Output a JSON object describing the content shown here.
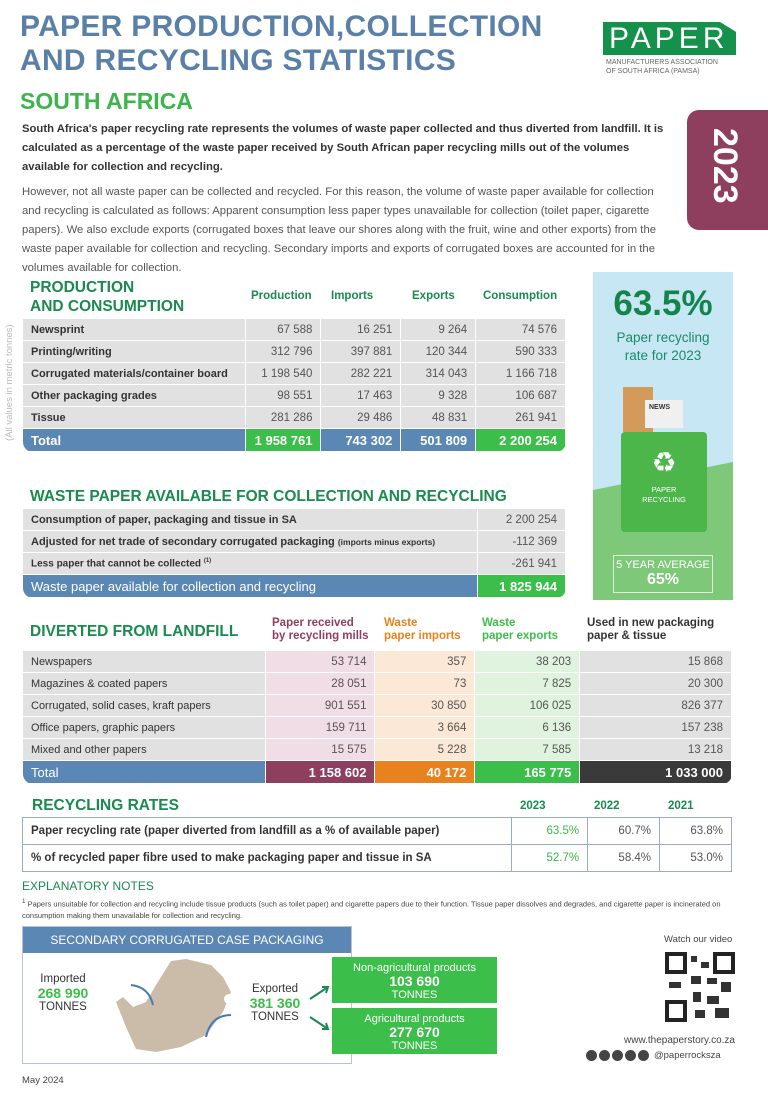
{
  "header": {
    "title_line1": "PAPER PRODUCTION,COLLECTION",
    "title_line2": "AND RECYCLING STATISTICS",
    "subtitle": "SOUTH AFRICA",
    "year": "2023"
  },
  "logo": {
    "word": "PAPER",
    "sub1": "MANUFACTURERS ASSOCIATION",
    "sub2": "OF SOUTH AFRICA (PAMSA)"
  },
  "intro": {
    "p1": "South Africa's paper recycling rate represents the volumes of waste paper collected and thus diverted from landfill. It is calculated as a percentage of the waste paper received by South African paper recycling mills out of the volumes available for collection and recycling.",
    "p2": "However, not all waste paper can be collected and recycled. For this reason, the volume of waste paper available for collection and recycling is calculated as follows: Apparent consumption less paper types unavailable for collection (toilet paper, cigarette papers). We also exclude exports (corrugated boxes that leave our shores along with the fruit, wine and other exports) from the waste paper available for collection and recycling. Secondary imports and exports of corrugated boxes are accounted for in the volumes available for collection."
  },
  "production": {
    "title1": "PRODUCTION",
    "title2": "AND CONSUMPTION",
    "units_note": "(All values in metric tonnes)",
    "columns": [
      "Production",
      "Imports",
      "Exports",
      "Consumption"
    ],
    "rows": [
      [
        "Newsprint",
        "67 588",
        "16 251",
        "9 264",
        "74 576"
      ],
      [
        "Printing/writing",
        "312 796",
        "397 881",
        "120 344",
        "590 333"
      ],
      [
        "Corrugated materials/container board",
        "1 198 540",
        "282 221",
        "314 043",
        "1 166 718"
      ],
      [
        "Other packaging grades",
        "98 551",
        "17 463",
        "9 328",
        "106 687"
      ],
      [
        "Tissue",
        "281 286",
        "29 486",
        "48 831",
        "261 941"
      ]
    ],
    "total": [
      "Total",
      "1 958 761",
      "743 302",
      "501 809",
      "2 200 254"
    ]
  },
  "waste": {
    "title": "WASTE PAPER AVAILABLE FOR COLLECTION AND RECYCLING",
    "rows": [
      {
        "label": "Consumption of paper, packaging and tissue in SA",
        "note": "",
        "value": "2 200 254"
      },
      {
        "label": "Adjusted for net trade of secondary corrugated packaging",
        "note": "(imports minus exports)",
        "value": "-112 369"
      },
      {
        "label": "Less paper that cannot be collected",
        "note": "(1)",
        "value": "-261 941"
      }
    ],
    "total": {
      "label": "Waste paper available for collection and recycling",
      "value": "1 825 944"
    }
  },
  "diverted": {
    "title": "DIVERTED FROM LANDFILL",
    "columns": [
      {
        "l1": "Paper received",
        "l2": "by recycling mills",
        "color": "#8f3f5e"
      },
      {
        "l1": "Waste",
        "l2": "paper imports",
        "color": "#e8821e"
      },
      {
        "l1": "Waste",
        "l2": "paper exports",
        "color": "#3cbe4a"
      },
      {
        "l1": "Used in new packaging",
        "l2": "paper & tissue",
        "color": "#333333"
      }
    ],
    "rows": [
      [
        "Newspapers",
        "53 714",
        "357",
        "38 203",
        "15 868"
      ],
      [
        "Magazines & coated papers",
        "28 051",
        "73",
        "7 825",
        "20 300"
      ],
      [
        "Corrugated, solid cases, kraft papers",
        "901 551",
        "30 850",
        "106 025",
        "826 377"
      ],
      [
        "Office papers, graphic papers",
        "159 711",
        "3 664",
        "6 136",
        "157 238"
      ],
      [
        "Mixed and other papers",
        "15 575",
        "5 228",
        "7 585",
        "13 218"
      ]
    ],
    "total": [
      "Total",
      "1  158 602",
      "40 172",
      "165 775",
      "1 033 000"
    ]
  },
  "rates": {
    "title": "RECYCLING RATES",
    "years": [
      "2023",
      "2022",
      "2021"
    ],
    "rows": [
      [
        "Paper recycling rate (paper diverted from landfill as a % of available paper)",
        "63.5%",
        "60.7%",
        "63.8%"
      ],
      [
        "% of recycled paper fibre used to make packaging paper and tissue in SA",
        "52.7%",
        "58.4%",
        "53.0%"
      ]
    ]
  },
  "notes": {
    "title": "EXPLANATORY NOTES",
    "sup": "1",
    "text": "Papers unsuitable for collection and recycling include tissue products (such as toilet paper) and cigarette papers due to their function. Tissue paper dissolves and degrades, and cigarette paper is incinerated on consumption making them unavailable for collection and recycling."
  },
  "side": {
    "rate": "63.5%",
    "rate_label1": "Paper recycling",
    "rate_label2": "rate for 2023",
    "bin1": "PAPER",
    "bin2": "RECYCLING",
    "news": "NEWS",
    "avg_label": "5 YEAR AVERAGE",
    "avg_value": "65%"
  },
  "secondary": {
    "title": "SECONDARY CORRUGATED CASE PACKAGING",
    "imported_label": "Imported",
    "imported_value": "268 990",
    "exported_label": "Exported",
    "exported_value": "381 360",
    "unit": "TONNES",
    "nonag_label": "Non-agricultural products",
    "nonag_value": "103 690",
    "ag_label": "Agricultural  products",
    "ag_value": "277 670"
  },
  "footer": {
    "video": "Watch our video",
    "url": "www.thepaperstory.co.za",
    "handle": "@paperrocksza",
    "date": "May 2024",
    "social_icons": [
      "instagram",
      "facebook",
      "x",
      "linkedin",
      "youtube"
    ]
  }
}
